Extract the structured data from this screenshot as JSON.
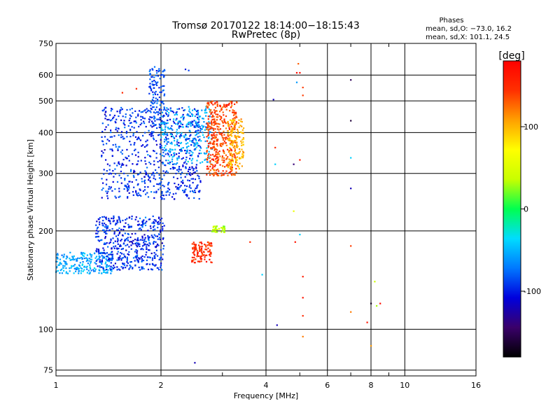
{
  "chart_data": {
    "type": "scatter",
    "title": "Tromsø 20170122 18:14:00−18:15:43",
    "subtitle": "RwPretec (8p)",
    "xlabel": "Frequency [MHz]",
    "ylabel": "Stationary phase Virtual Height [km]",
    "x_scale": "log",
    "y_scale": "log",
    "xlim": [
      1,
      16
    ],
    "ylim": [
      72,
      750
    ],
    "x_ticks": [
      1,
      2,
      4,
      6,
      8,
      10,
      16
    ],
    "y_ticks": [
      75,
      100,
      200,
      300,
      400,
      500,
      600,
      750
    ],
    "grid": true,
    "phases_legend": {
      "heading": "Phases",
      "line_o": "mean, sd,O: −73.0, 16.2",
      "line_x": "mean, sd,X: 101.1, 24.5"
    },
    "colorbar": {
      "label": "[deg]",
      "range": [
        -180,
        180
      ],
      "ticks": [
        100,
        0,
        -100
      ],
      "colors": [
        "#000000",
        "#3a006a",
        "#0000dd",
        "#0078ff",
        "#00dcff",
        "#00ff50",
        "#c8ff00",
        "#ffff00",
        "#ffa000",
        "#ff3000",
        "#ff0000"
      ]
    },
    "clusters": [
      {
        "name": "F-trace blue",
        "x_range": [
          1.35,
          2.6
        ],
        "y_range": [
          250,
          480
        ],
        "phase_mean": -95,
        "phase_sd": 18,
        "count": 700
      },
      {
        "name": "F-cusp near 2 MHz",
        "x_range": [
          1.85,
          2.05
        ],
        "y_range": [
          420,
          640
        ],
        "phase_mean": -85,
        "phase_sd": 15,
        "count": 120
      },
      {
        "name": "F-trace cyan",
        "x_range": [
          2.0,
          2.8
        ],
        "y_range": [
          320,
          480
        ],
        "phase_mean": -50,
        "phase_sd": 15,
        "count": 240
      },
      {
        "name": "F-trace orange",
        "x_range": [
          2.7,
          3.3
        ],
        "y_range": [
          295,
          500
        ],
        "phase_mean": 140,
        "phase_sd": 20,
        "count": 420
      },
      {
        "name": "F-trace yellow",
        "x_range": [
          3.1,
          3.45
        ],
        "y_range": [
          310,
          440
        ],
        "phase_mean": 100,
        "phase_sd": 15,
        "count": 150
      },
      {
        "name": "E-trace cyan",
        "x_range": [
          1.0,
          1.45
        ],
        "y_range": [
          148,
          172
        ],
        "phase_mean": -55,
        "phase_sd": 15,
        "count": 220
      },
      {
        "name": "E-trace blue",
        "x_range": [
          1.3,
          2.05
        ],
        "y_range": [
          152,
          222
        ],
        "phase_mean": -95,
        "phase_sd": 20,
        "count": 480
      },
      {
        "name": "E-trace orange",
        "x_range": [
          2.45,
          2.8
        ],
        "y_range": [
          160,
          185
        ],
        "phase_mean": 150,
        "phase_sd": 18,
        "count": 110
      },
      {
        "name": "E-trace green",
        "x_range": [
          2.8,
          3.05
        ],
        "y_range": [
          198,
          207
        ],
        "phase_mean": 35,
        "phase_sd": 10,
        "count": 40
      }
    ],
    "scattered_points": [
      {
        "x": 1.55,
        "y": 530,
        "phase": 150
      },
      {
        "x": 1.7,
        "y": 545,
        "phase": 150
      },
      {
        "x": 2.0,
        "y": 600,
        "phase": -100
      },
      {
        "x": 2.35,
        "y": 625,
        "phase": -100
      },
      {
        "x": 2.4,
        "y": 620,
        "phase": -90
      },
      {
        "x": 4.2,
        "y": 505,
        "phase": -120
      },
      {
        "x": 4.25,
        "y": 360,
        "phase": 150
      },
      {
        "x": 4.25,
        "y": 320,
        "phase": -40
      },
      {
        "x": 4.3,
        "y": 103,
        "phase": -120
      },
      {
        "x": 4.8,
        "y": 320,
        "phase": -140
      },
      {
        "x": 4.8,
        "y": 230,
        "phase": 60
      },
      {
        "x": 4.85,
        "y": 185,
        "phase": 165
      },
      {
        "x": 4.9,
        "y": 610,
        "phase": 170
      },
      {
        "x": 4.9,
        "y": 570,
        "phase": -60
      },
      {
        "x": 5.0,
        "y": 610,
        "phase": 170
      },
      {
        "x": 5.0,
        "y": 330,
        "phase": 160
      },
      {
        "x": 5.0,
        "y": 195,
        "phase": -40
      },
      {
        "x": 5.1,
        "y": 145,
        "phase": 160
      },
      {
        "x": 5.1,
        "y": 125,
        "phase": 165
      },
      {
        "x": 5.1,
        "y": 110,
        "phase": 150
      },
      {
        "x": 5.1,
        "y": 95,
        "phase": 120
      },
      {
        "x": 5.1,
        "y": 550,
        "phase": 140
      },
      {
        "x": 5.1,
        "y": 520,
        "phase": 140
      },
      {
        "x": 4.95,
        "y": 650,
        "phase": 130
      },
      {
        "x": 7.0,
        "y": 580,
        "phase": -150
      },
      {
        "x": 7.0,
        "y": 435,
        "phase": -160
      },
      {
        "x": 7.0,
        "y": 335,
        "phase": -40
      },
      {
        "x": 7.0,
        "y": 270,
        "phase": -120
      },
      {
        "x": 7.0,
        "y": 180,
        "phase": 140
      },
      {
        "x": 7.0,
        "y": 113,
        "phase": 120
      },
      {
        "x": 7.8,
        "y": 105,
        "phase": 165
      },
      {
        "x": 8.0,
        "y": 120,
        "phase": -170
      },
      {
        "x": 8.0,
        "y": 89,
        "phase": 110
      },
      {
        "x": 8.2,
        "y": 140,
        "phase": 40
      },
      {
        "x": 8.3,
        "y": 118,
        "phase": 30
      },
      {
        "x": 8.5,
        "y": 120,
        "phase": 170
      },
      {
        "x": 3.6,
        "y": 185,
        "phase": 150
      },
      {
        "x": 3.9,
        "y": 147,
        "phase": -40
      },
      {
        "x": 2.5,
        "y": 79,
        "phase": -120
      }
    ]
  }
}
